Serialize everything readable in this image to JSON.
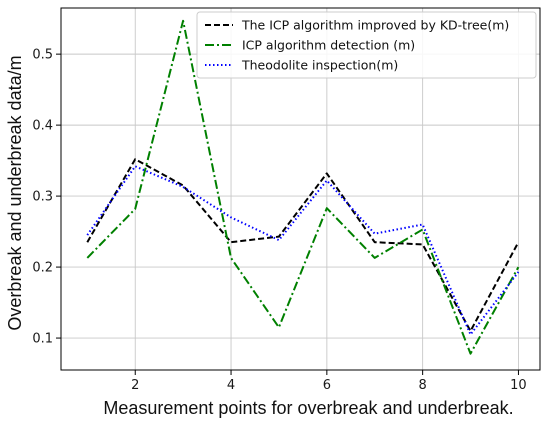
{
  "chart_data": {
    "type": "line",
    "xlabel": "Measurement points for overbreak and underbreak.",
    "ylabel": "Overbreak and underbreak data/m",
    "xlim": [
      0.45,
      10.45
    ],
    "ylim": [
      0.055,
      0.565
    ],
    "x": [
      1,
      2,
      3,
      4,
      5,
      6,
      7,
      8,
      9,
      10
    ],
    "xticks": [
      2,
      4,
      6,
      8,
      10
    ],
    "yticks": [
      0.1,
      0.2,
      0.3,
      0.4,
      0.5
    ],
    "xtick_labels": [
      "2",
      "4",
      "6",
      "8",
      "10"
    ],
    "ytick_labels": [
      "0.1",
      "0.2",
      "0.3",
      "0.4",
      "0.5"
    ],
    "grid": true,
    "legend_position": "top-right",
    "series": [
      {
        "name": "The ICP algorithm improved by KD-tree(m)",
        "color": "#000000",
        "style": "dashed",
        "values": [
          0.235,
          0.352,
          0.315,
          0.235,
          0.243,
          0.332,
          0.235,
          0.232,
          0.11,
          0.235
        ]
      },
      {
        "name": "ICP algorithm detection (m)",
        "color": "#008000",
        "style": "dashdot",
        "values": [
          0.213,
          0.282,
          0.547,
          0.213,
          0.115,
          0.283,
          0.213,
          0.253,
          0.078,
          0.2
        ]
      },
      {
        "name": "Theodolite inspection(m)",
        "color": "#0000ff",
        "style": "dotted",
        "values": [
          0.245,
          0.342,
          0.313,
          0.27,
          0.238,
          0.322,
          0.247,
          0.26,
          0.105,
          0.193
        ]
      }
    ]
  }
}
